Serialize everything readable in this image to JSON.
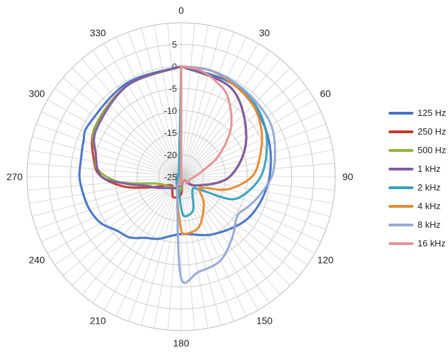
{
  "chart_data": {
    "type": "polar-line",
    "title": "",
    "angle_unit": "degrees",
    "angle_labels": [
      "0",
      "30",
      "60",
      "90",
      "120",
      "150",
      "180",
      "210",
      "240",
      "270",
      "300",
      "330"
    ],
    "radial_ticks": [
      "5",
      "0",
      "-5",
      "-10",
      "-15",
      "-20",
      "-25"
    ],
    "radial_range": [
      -25,
      5
    ],
    "grid": true,
    "legend_position": "right",
    "series": [
      {
        "name": "125 Hz",
        "color": "#4472c4",
        "points": [
          [
            0,
            0
          ],
          [
            30,
            -1
          ],
          [
            60,
            -3
          ],
          [
            90,
            -5
          ],
          [
            120,
            -7
          ],
          [
            150,
            -10
          ],
          [
            180,
            -12
          ],
          [
            200,
            -10
          ],
          [
            210,
            -9
          ],
          [
            220,
            -7
          ],
          [
            230,
            -6
          ],
          [
            240,
            -4
          ],
          [
            250,
            -3
          ],
          [
            260,
            -2.5
          ],
          [
            270,
            -2
          ],
          [
            280,
            -2
          ],
          [
            290,
            -1.5
          ],
          [
            300,
            -1
          ],
          [
            330,
            -0.5
          ],
          [
            360,
            0
          ]
        ]
      },
      {
        "name": "250 Hz",
        "color": "#c0392b",
        "points": [
          [
            0,
            0
          ],
          [
            30,
            -2
          ],
          [
            60,
            -8
          ],
          [
            90,
            -14
          ],
          [
            120,
            -21
          ],
          [
            150,
            -24
          ],
          [
            180,
            -21
          ],
          [
            200,
            -20
          ],
          [
            210,
            -21
          ],
          [
            230,
            -22
          ],
          [
            250,
            -18
          ],
          [
            260,
            -12
          ],
          [
            270,
            -7
          ],
          [
            280,
            -5
          ],
          [
            300,
            -2.5
          ],
          [
            330,
            -1
          ],
          [
            360,
            0
          ]
        ]
      },
      {
        "name": "500 Hz",
        "color": "#8db33c",
        "points": [
          [
            0,
            0
          ],
          [
            30,
            -2
          ],
          [
            60,
            -8
          ],
          [
            90,
            -14
          ],
          [
            120,
            -21
          ],
          [
            150,
            -24
          ],
          [
            180,
            -22
          ],
          [
            210,
            -22
          ],
          [
            240,
            -21
          ],
          [
            255,
            -19
          ],
          [
            265,
            -11
          ],
          [
            275,
            -6
          ],
          [
            285,
            -5
          ],
          [
            300,
            -2.5
          ],
          [
            330,
            -1
          ],
          [
            360,
            0
          ]
        ]
      },
      {
        "name": "1 kHz",
        "color": "#7f5aa8",
        "points": [
          [
            0,
            0
          ],
          [
            30,
            -2
          ],
          [
            60,
            -8
          ],
          [
            90,
            -14
          ],
          [
            120,
            -21
          ],
          [
            150,
            -24
          ],
          [
            180,
            -23
          ],
          [
            210,
            -22
          ],
          [
            230,
            -21
          ],
          [
            245,
            -19
          ],
          [
            255,
            -17
          ],
          [
            262,
            -13
          ],
          [
            270,
            -7
          ],
          [
            285,
            -5
          ],
          [
            300,
            -3
          ],
          [
            330,
            -1
          ],
          [
            360,
            0
          ]
        ]
      },
      {
        "name": "2 kHz",
        "color": "#3aa0b8",
        "points": [
          [
            0,
            0
          ],
          [
            15,
            0
          ],
          [
            30,
            -0.5
          ],
          [
            45,
            -1.5
          ],
          [
            60,
            -3
          ],
          [
            75,
            -5
          ],
          [
            90,
            -7
          ],
          [
            105,
            -10
          ],
          [
            115,
            -13
          ],
          [
            125,
            -20
          ],
          [
            140,
            -21
          ],
          [
            160,
            -17
          ],
          [
            175,
            -16
          ],
          [
            180,
            -18
          ],
          [
            190,
            -22
          ],
          [
            210,
            -23
          ],
          [
            240,
            -24
          ],
          [
            270,
            -25
          ],
          [
            300,
            -24
          ],
          [
            330,
            -24
          ],
          [
            360,
            0
          ]
        ]
      },
      {
        "name": "4 kHz",
        "color": "#e8892f",
        "points": [
          [
            0,
            0
          ],
          [
            15,
            0
          ],
          [
            30,
            -1
          ],
          [
            45,
            -2
          ],
          [
            60,
            -4
          ],
          [
            75,
            -6.5
          ],
          [
            90,
            -9
          ],
          [
            105,
            -14
          ],
          [
            115,
            -19
          ],
          [
            125,
            -20
          ],
          [
            140,
            -17
          ],
          [
            160,
            -13
          ],
          [
            175,
            -12
          ],
          [
            180,
            -13
          ],
          [
            190,
            -20
          ],
          [
            210,
            -24
          ],
          [
            240,
            -25
          ],
          [
            270,
            -25
          ],
          [
            300,
            -25
          ],
          [
            330,
            -25
          ],
          [
            360,
            0
          ]
        ]
      },
      {
        "name": "8 kHz",
        "color": "#94a9d6",
        "points": [
          [
            0,
            0
          ],
          [
            15,
            0
          ],
          [
            30,
            -0.5
          ],
          [
            45,
            -1
          ],
          [
            60,
            -1.5
          ],
          [
            75,
            -3
          ],
          [
            90,
            -4.5
          ],
          [
            105,
            -7
          ],
          [
            115,
            -8.5
          ],
          [
            125,
            -9.5
          ],
          [
            140,
            -7
          ],
          [
            155,
            -4
          ],
          [
            170,
            -3
          ],
          [
            180,
            -2
          ],
          [
            190,
            -20
          ],
          [
            210,
            -24
          ],
          [
            240,
            -25
          ],
          [
            270,
            -25
          ],
          [
            300,
            -25
          ],
          [
            330,
            -25
          ],
          [
            360,
            0
          ]
        ]
      },
      {
        "name": "16 kHz",
        "color": "#e39494",
        "points": [
          [
            0,
            0
          ],
          [
            10,
            -0.5
          ],
          [
            20,
            -2
          ],
          [
            30,
            -4
          ],
          [
            45,
            -9
          ],
          [
            60,
            -15
          ],
          [
            75,
            -20
          ],
          [
            90,
            -22
          ],
          [
            110,
            -23
          ],
          [
            130,
            -23
          ],
          [
            150,
            -24
          ],
          [
            170,
            -24
          ],
          [
            180,
            -24
          ],
          [
            190,
            -24
          ],
          [
            210,
            -25
          ],
          [
            240,
            -25
          ],
          [
            270,
            -25
          ],
          [
            300,
            -25
          ],
          [
            330,
            -25
          ],
          [
            350,
            -25
          ],
          [
            360,
            0
          ]
        ]
      }
    ]
  }
}
